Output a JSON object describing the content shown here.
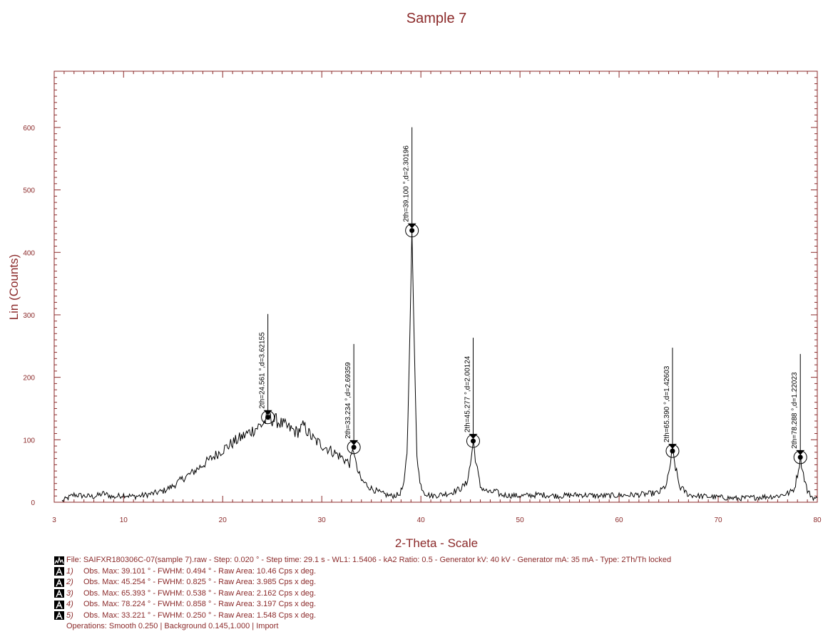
{
  "chart_data": {
    "type": "line",
    "title": "Sample 7",
    "xlabel": "2-Theta - Scale",
    "ylabel": "Lin (Counts)",
    "xlim": [
      3,
      80
    ],
    "ylim": [
      0,
      690
    ],
    "x_ticks": [
      3,
      10,
      20,
      30,
      40,
      50,
      60,
      70,
      80
    ],
    "y_ticks": [
      0,
      100,
      200,
      300,
      400,
      500,
      600
    ],
    "grid": false,
    "series": [
      {
        "x": [
          3.8,
          5,
          6,
          7,
          8,
          9,
          10,
          11,
          12,
          13,
          14,
          15,
          16,
          17,
          18,
          19,
          20,
          21,
          22,
          23,
          24,
          24.6,
          25.5,
          26.5,
          27.5,
          28.2,
          28.7,
          29.2,
          30,
          31,
          32,
          32.8,
          33.0,
          33.23,
          33.5,
          34,
          35,
          36,
          37,
          37.8,
          38.3,
          38.6,
          38.85,
          39.1,
          39.35,
          39.6,
          39.9,
          40.4,
          41,
          42,
          43,
          44,
          44.6,
          45.0,
          45.28,
          45.6,
          46.0,
          46.6,
          47,
          47.5,
          48,
          50,
          52,
          54,
          56,
          58,
          60,
          62,
          64,
          64.8,
          65.1,
          65.39,
          65.7,
          66.1,
          66.6,
          67,
          68,
          70,
          72,
          74,
          76,
          77.2,
          77.7,
          78.0,
          78.29,
          78.6,
          79.0,
          79.5,
          80
        ],
        "y": [
          2,
          12,
          10,
          9,
          14,
          8,
          12,
          9,
          11,
          14,
          18,
          26,
          38,
          48,
          60,
          72,
          84,
          95,
          105,
          115,
          125,
          135,
          130,
          120,
          112,
          122,
          110,
          100,
          92,
          82,
          72,
          62,
          72,
          88,
          55,
          35,
          22,
          14,
          10,
          12,
          28,
          80,
          240,
          435,
          240,
          80,
          30,
          15,
          10,
          12,
          15,
          22,
          30,
          60,
          98,
          60,
          25,
          18,
          15,
          18,
          12,
          10,
          12,
          10,
          12,
          10,
          11,
          12,
          15,
          28,
          55,
          82,
          55,
          25,
          18,
          12,
          10,
          8,
          6,
          8,
          10,
          15,
          22,
          45,
          72,
          45,
          18,
          8,
          5
        ]
      }
    ],
    "annotations": [
      {
        "x": 24.561,
        "y": 136,
        "label": "2th=24.561 °,d=3.62155"
      },
      {
        "x": 33.234,
        "y": 88,
        "label": "2th=33.234 °,d=2.69359"
      },
      {
        "x": 39.1,
        "y": 435,
        "label": "2th=39.100 °,d=2.30196"
      },
      {
        "x": 45.277,
        "y": 98,
        "label": "2th=45.277 °,d=2.00124"
      },
      {
        "x": 65.39,
        "y": 82,
        "label": "2th=65.390 °,d=1.42603"
      },
      {
        "x": 78.288,
        "y": 72,
        "label": "2th=78.288 °,d=1.22023"
      }
    ]
  },
  "legend": {
    "file_line": "File: SAIFXR180306C-07(sample 7).raw - Step: 0.020 ° - Step time: 29.1 s - WL1: 1.5406 - kA2 Ratio: 0.5 - Generator kV: 40 kV - Generator mA: 35 mA - Type: 2Th/Th locked",
    "peaks": [
      {
        "num": "1)",
        "text": "Obs. Max: 39.101 ° - FWHM: 0.494 ° - Raw Area: 10.46 Cps x deg."
      },
      {
        "num": "2)",
        "text": "Obs. Max: 45.254 ° - FWHM: 0.825 ° - Raw Area: 3.985 Cps x deg."
      },
      {
        "num": "3)",
        "text": "Obs. Max: 65.393 ° - FWHM: 0.538 ° - Raw Area: 2.162 Cps x deg."
      },
      {
        "num": "4)",
        "text": "Obs. Max: 78.224 ° - FWHM: 0.858 ° - Raw Area: 3.197 Cps x deg."
      },
      {
        "num": "5)",
        "text": "Obs. Max: 33.221 ° - FWHM: 0.250 ° - Raw Area: 1.548 Cps x deg."
      }
    ],
    "operations": "Operations: Smooth 0.250 | Background 0.145,1.000 | Import"
  },
  "colors": {
    "axis": "#8b2a2a",
    "text": "#8b2a2a",
    "trace": "#000000"
  }
}
